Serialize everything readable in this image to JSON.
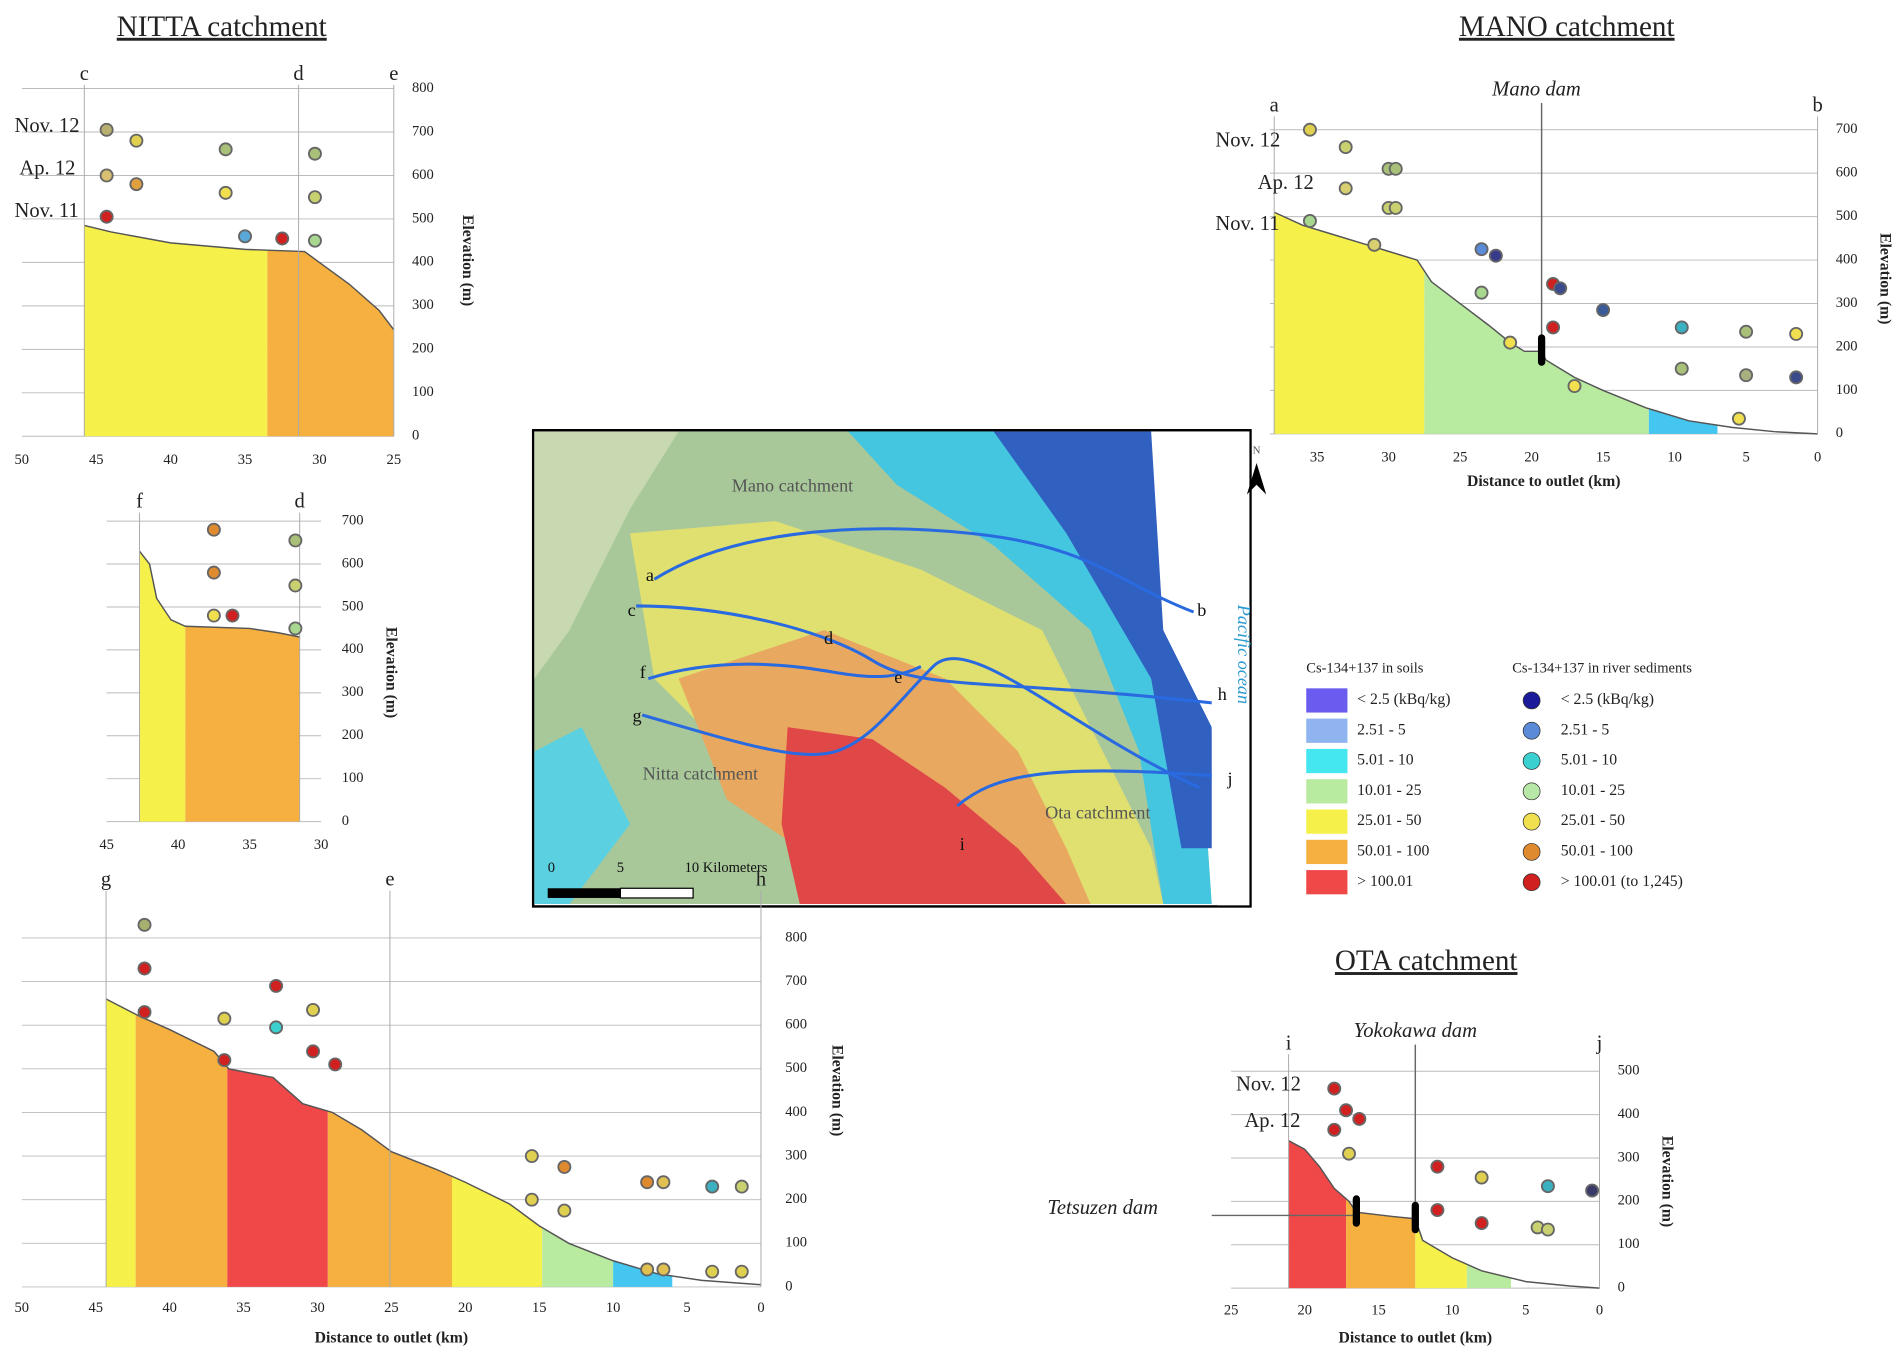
{
  "chart_data": [
    {
      "type": "area",
      "title": "NITTA catchment",
      "row_labels": [
        "Nov. 12",
        "Ap. 12",
        "Nov. 11"
      ],
      "y_label": "Elevation (m)",
      "xlim": [
        50,
        25
      ],
      "xticks": [
        50,
        45,
        40,
        35,
        30,
        25
      ],
      "ylim": [
        0,
        800
      ],
      "yticks": [
        0,
        100,
        200,
        300,
        400,
        500,
        600,
        700,
        800
      ],
      "grid": true,
      "markers": [
        {
          "label": "c",
          "x": 45.8
        },
        {
          "label": "d",
          "x": 31.4
        },
        {
          "label": "e",
          "x": 25
        }
      ],
      "profile": {
        "x": [
          45.8,
          44,
          40,
          35,
          31,
          30,
          28,
          26,
          25
        ],
        "elevation": [
          485,
          470,
          445,
          430,
          425,
          400,
          350,
          290,
          245
        ]
      },
      "segments": [
        {
          "from": 45.8,
          "to": 33.5,
          "color": "#f5f04a"
        },
        {
          "from": 33.5,
          "to": 25,
          "color": "#f5b040"
        }
      ],
      "points": [
        {
          "x": 44.3,
          "y": 705,
          "color": "#b8b070"
        },
        {
          "x": 42.3,
          "y": 680,
          "color": "#e0d050"
        },
        {
          "x": 36.3,
          "y": 660,
          "color": "#a8c078"
        },
        {
          "x": 30.3,
          "y": 650,
          "color": "#a8c078"
        },
        {
          "x": 44.3,
          "y": 600,
          "color": "#d8c070"
        },
        {
          "x": 42.3,
          "y": 580,
          "color": "#e0a040"
        },
        {
          "x": 36.3,
          "y": 560,
          "color": "#f0e050"
        },
        {
          "x": 30.3,
          "y": 550,
          "color": "#c8d070"
        },
        {
          "x": 44.3,
          "y": 505,
          "color": "#d02020"
        },
        {
          "x": 35,
          "y": 460,
          "color": "#5aa8d8"
        },
        {
          "x": 32.5,
          "y": 455,
          "color": "#d02020"
        },
        {
          "x": 30.3,
          "y": 450,
          "color": "#a8d890"
        }
      ]
    },
    {
      "type": "area",
      "y_label": "Elevation (m)",
      "xlim": [
        45,
        30
      ],
      "xticks": [
        45,
        40,
        35,
        30
      ],
      "ylim": [
        0,
        700
      ],
      "yticks": [
        0,
        100,
        200,
        300,
        400,
        500,
        600,
        700
      ],
      "grid": true,
      "markers": [
        {
          "label": "f",
          "x": 42.7
        },
        {
          "label": "d",
          "x": 31.5
        }
      ],
      "profile": {
        "x": [
          42.7,
          42,
          41.5,
          40.5,
          39.5,
          35,
          33,
          31.5
        ],
        "elevation": [
          630,
          600,
          520,
          470,
          455,
          450,
          440,
          430
        ]
      },
      "segments": [
        {
          "from": 42.7,
          "to": 39.5,
          "color": "#f5f04a"
        },
        {
          "from": 39.5,
          "to": 31.5,
          "color": "#f5b040"
        }
      ],
      "points": [
        {
          "x": 37.5,
          "y": 680,
          "color": "#e08a30"
        },
        {
          "x": 31.8,
          "y": 655,
          "color": "#a8c078"
        },
        {
          "x": 37.5,
          "y": 580,
          "color": "#e08a30"
        },
        {
          "x": 31.8,
          "y": 550,
          "color": "#c8d070"
        },
        {
          "x": 37.5,
          "y": 480,
          "color": "#f0e050"
        },
        {
          "x": 36.2,
          "y": 480,
          "color": "#d02020"
        },
        {
          "x": 31.8,
          "y": 450,
          "color": "#a8d890"
        }
      ]
    },
    {
      "type": "area",
      "x_label": "Distance to outlet (km)",
      "y_label": "Elevation (m)",
      "xlim": [
        50,
        0
      ],
      "xticks": [
        50,
        45,
        40,
        35,
        30,
        25,
        20,
        15,
        10,
        5,
        0
      ],
      "ylim": [
        0,
        800
      ],
      "yticks": [
        0,
        100,
        200,
        300,
        400,
        500,
        600,
        700,
        800
      ],
      "grid": true,
      "markers": [
        {
          "label": "g",
          "x": 44.3
        },
        {
          "label": "e",
          "x": 25.1
        },
        {
          "label": "h",
          "x": 0
        }
      ],
      "profile": {
        "x": [
          44.3,
          42,
          40,
          37,
          36,
          33,
          31,
          29,
          27,
          25,
          22,
          20,
          17,
          15,
          13,
          10,
          7,
          4,
          0
        ],
        "elevation": [
          660,
          620,
          590,
          540,
          500,
          480,
          420,
          400,
          360,
          310,
          270,
          240,
          190,
          140,
          100,
          60,
          30,
          15,
          5
        ]
      },
      "segments": [
        {
          "from": 44.3,
          "to": 42.3,
          "color": "#f5f04a"
        },
        {
          "from": 42.3,
          "to": 36.1,
          "color": "#f5b040"
        },
        {
          "from": 36.1,
          "to": 29.3,
          "color": "#f04848"
        },
        {
          "from": 29.3,
          "to": 20.9,
          "color": "#f5b040"
        },
        {
          "from": 20.9,
          "to": 14.8,
          "color": "#f5f04a"
        },
        {
          "from": 14.8,
          "to": 10,
          "color": "#b8eaa0"
        },
        {
          "from": 10,
          "to": 6,
          "color": "#44c6f0"
        }
      ],
      "points": [
        {
          "x": 41.7,
          "y": 830,
          "color": "#a8b070"
        },
        {
          "x": 41.7,
          "y": 730,
          "color": "#d02020"
        },
        {
          "x": 41.7,
          "y": 630,
          "color": "#d02020"
        },
        {
          "x": 36.3,
          "y": 615,
          "color": "#e0d050"
        },
        {
          "x": 36.3,
          "y": 520,
          "color": "#d02020"
        },
        {
          "x": 32.8,
          "y": 690,
          "color": "#d02020"
        },
        {
          "x": 32.8,
          "y": 595,
          "color": "#3ad0d0"
        },
        {
          "x": 30.3,
          "y": 635,
          "color": "#e0d050"
        },
        {
          "x": 30.3,
          "y": 540,
          "color": "#d02020"
        },
        {
          "x": 28.8,
          "y": 510,
          "color": "#d02020"
        },
        {
          "x": 15.5,
          "y": 300,
          "color": "#e0d050"
        },
        {
          "x": 15.5,
          "y": 200,
          "color": "#e0d050"
        },
        {
          "x": 13.3,
          "y": 275,
          "color": "#e08a30"
        },
        {
          "x": 13.3,
          "y": 175,
          "color": "#e0d050"
        },
        {
          "x": 7.7,
          "y": 240,
          "color": "#e08a30"
        },
        {
          "x": 6.6,
          "y": 240,
          "color": "#e0c050"
        },
        {
          "x": 3.3,
          "y": 230,
          "color": "#3ab0c0"
        },
        {
          "x": 1.3,
          "y": 230,
          "color": "#c8d070"
        },
        {
          "x": 7.7,
          "y": 40,
          "color": "#e0c050"
        },
        {
          "x": 6.6,
          "y": 40,
          "color": "#e0c050"
        },
        {
          "x": 3.3,
          "y": 35,
          "color": "#e0d050"
        },
        {
          "x": 1.3,
          "y": 35,
          "color": "#e0d050"
        }
      ]
    },
    {
      "type": "area",
      "title": "MANO catchment",
      "row_labels": [
        "Nov. 12",
        "Ap. 12",
        "Nov. 11"
      ],
      "x_label": "Distance to outlet (km)",
      "y_label": "Elevation (m)",
      "xlim": [
        38.3,
        0
      ],
      "xticks": [
        35,
        30,
        25,
        20,
        15,
        10,
        5,
        0
      ],
      "ylim": [
        0,
        700
      ],
      "yticks": [
        0,
        100,
        200,
        300,
        400,
        500,
        600,
        700
      ],
      "grid": true,
      "markers": [
        {
          "label": "a",
          "x": 38
        },
        {
          "label": "b",
          "x": 0
        }
      ],
      "dams": [
        {
          "label": "Mano dam",
          "x": 19.3
        }
      ],
      "profile": {
        "x": [
          38,
          36,
          34,
          32,
          30,
          28,
          27,
          25,
          23,
          21.5,
          20.5,
          19.3,
          19,
          17,
          15,
          12,
          9,
          6,
          3,
          0
        ],
        "elevation": [
          510,
          480,
          460,
          440,
          420,
          400,
          350,
          300,
          250,
          210,
          190,
          190,
          170,
          130,
          100,
          60,
          30,
          15,
          5,
          0
        ]
      },
      "segments": [
        {
          "from": 38,
          "to": 27.5,
          "color": "#f5f04a"
        },
        {
          "from": 27.5,
          "to": 11.8,
          "color": "#b8eaa0"
        },
        {
          "from": 11.8,
          "to": 7,
          "color": "#44c6f0"
        }
      ],
      "points": [
        {
          "x": 35.5,
          "y": 700,
          "color": "#e0d050"
        },
        {
          "x": 33,
          "y": 660,
          "color": "#c8d070"
        },
        {
          "x": 30,
          "y": 610,
          "color": "#a8c078"
        },
        {
          "x": 29.5,
          "y": 610,
          "color": "#a8c078"
        },
        {
          "x": 33,
          "y": 565,
          "color": "#d8d070"
        },
        {
          "x": 30,
          "y": 520,
          "color": "#c8d070"
        },
        {
          "x": 29.5,
          "y": 520,
          "color": "#c8d070"
        },
        {
          "x": 35.5,
          "y": 490,
          "color": "#a8d890"
        },
        {
          "x": 31,
          "y": 435,
          "color": "#d8d070"
        },
        {
          "x": 23.5,
          "y": 425,
          "color": "#5a8ad8"
        },
        {
          "x": 22.5,
          "y": 410,
          "color": "#3a3a8a"
        },
        {
          "x": 18.5,
          "y": 345,
          "color": "#d02020"
        },
        {
          "x": 18,
          "y": 335,
          "color": "#3a4a8a"
        },
        {
          "x": 23.5,
          "y": 325,
          "color": "#a8d890"
        },
        {
          "x": 15,
          "y": 285,
          "color": "#3a5a9a"
        },
        {
          "x": 18.5,
          "y": 245,
          "color": "#d02020"
        },
        {
          "x": 9.5,
          "y": 245,
          "color": "#3ab0c0"
        },
        {
          "x": 5,
          "y": 235,
          "color": "#a8c078"
        },
        {
          "x": 1.5,
          "y": 230,
          "color": "#f0e050"
        },
        {
          "x": 21.5,
          "y": 210,
          "color": "#f0e050"
        },
        {
          "x": 9.5,
          "y": 150,
          "color": "#a8c078"
        },
        {
          "x": 5,
          "y": 135,
          "color": "#a8b080"
        },
        {
          "x": 1.5,
          "y": 130,
          "color": "#3a4a8a"
        },
        {
          "x": 17,
          "y": 110,
          "color": "#f0e050"
        },
        {
          "x": 5.5,
          "y": 35,
          "color": "#f0e050"
        }
      ]
    },
    {
      "type": "area",
      "title": "OTA catchment",
      "row_labels": [
        "Nov. 12",
        "Ap. 12"
      ],
      "x_label": "Distance to outlet (km)",
      "y_label": "Elevation (m)",
      "xlim": [
        25,
        0
      ],
      "xticks": [
        25,
        20,
        15,
        10,
        5,
        0
      ],
      "ylim": [
        0,
        500
      ],
      "yticks": [
        0,
        100,
        200,
        300,
        400,
        500
      ],
      "grid": true,
      "markers": [
        {
          "label": "i",
          "x": 21.1
        },
        {
          "label": "j",
          "x": 0
        }
      ],
      "dams": [
        {
          "label": "Yokokawa dam",
          "x": 12.5
        },
        {
          "label": "Tetsuzen dam",
          "x": 16.5
        }
      ],
      "profile": {
        "x": [
          21.1,
          20,
          19,
          18,
          17,
          16.5,
          14,
          12.5,
          12,
          10,
          8,
          5,
          2,
          0
        ],
        "elevation": [
          340,
          320,
          280,
          230,
          200,
          175,
          165,
          160,
          110,
          70,
          40,
          15,
          5,
          0
        ]
      },
      "segments": [
        {
          "from": 21.1,
          "to": 17.2,
          "color": "#f04848"
        },
        {
          "from": 17.2,
          "to": 12.5,
          "color": "#f5b040"
        },
        {
          "from": 12.5,
          "to": 9,
          "color": "#f5f04a"
        },
        {
          "from": 9,
          "to": 6,
          "color": "#b8eaa0"
        }
      ],
      "points": [
        {
          "x": 18,
          "y": 460,
          "color": "#d02020"
        },
        {
          "x": 17.2,
          "y": 410,
          "color": "#d02020"
        },
        {
          "x": 16.3,
          "y": 390,
          "color": "#d02020"
        },
        {
          "x": 18,
          "y": 365,
          "color": "#d02020"
        },
        {
          "x": 17,
          "y": 310,
          "color": "#e0d050"
        },
        {
          "x": 11,
          "y": 280,
          "color": "#d02020"
        },
        {
          "x": 8,
          "y": 255,
          "color": "#e0d050"
        },
        {
          "x": 3.5,
          "y": 235,
          "color": "#3ab0c0"
        },
        {
          "x": 0.5,
          "y": 225,
          "color": "#3a3a6a"
        },
        {
          "x": 11,
          "y": 180,
          "color": "#d02020"
        },
        {
          "x": 8,
          "y": 150,
          "color": "#d02020"
        },
        {
          "x": 4.2,
          "y": 140,
          "color": "#c8d070"
        },
        {
          "x": 3.5,
          "y": 135,
          "color": "#c8d070"
        }
      ]
    }
  ],
  "map": {
    "catchments": [
      "Mano catchment",
      "Nitta catchment",
      "Ota catchment"
    ],
    "ocean": "Pacific ocean",
    "north": "N",
    "scale": [
      "0",
      "5",
      "10 Kilometers"
    ],
    "points": [
      "a",
      "b",
      "c",
      "d",
      "e",
      "f",
      "g",
      "h",
      "i",
      "j"
    ]
  },
  "legend": {
    "soils": {
      "title": "Cs-134+137 in soils",
      "items": [
        {
          "label": "< 2.5  (kBq/kg)",
          "color": "#6b5cf0"
        },
        {
          "label": "2.51 - 5",
          "color": "#8fb4f0"
        },
        {
          "label": "5.01 - 10",
          "color": "#44e6f0"
        },
        {
          "label": "10.01 - 25",
          "color": "#b8eaa0"
        },
        {
          "label": "25.01 - 50",
          "color": "#f5f04a"
        },
        {
          "label": "50.01 - 100",
          "color": "#f5b040"
        },
        {
          "label": "> 100.01",
          "color": "#f04848"
        }
      ]
    },
    "sediments": {
      "title": "Cs-134+137 in river sediments",
      "items": [
        {
          "label": "< 2.5  (kBq/kg)",
          "color": "#1a1a9a"
        },
        {
          "label": "2.51 - 5",
          "color": "#5a8ad8"
        },
        {
          "label": "5.01 - 10",
          "color": "#3ad0d0"
        },
        {
          "label": "10.01 - 25",
          "color": "#b8e8a8"
        },
        {
          "label": "25.01 - 50",
          "color": "#f0e050"
        },
        {
          "label": "50.01 - 100",
          "color": "#e08a30"
        },
        {
          "label": "> 100.01 (to 1,245)",
          "color": "#d02020"
        }
      ]
    }
  }
}
